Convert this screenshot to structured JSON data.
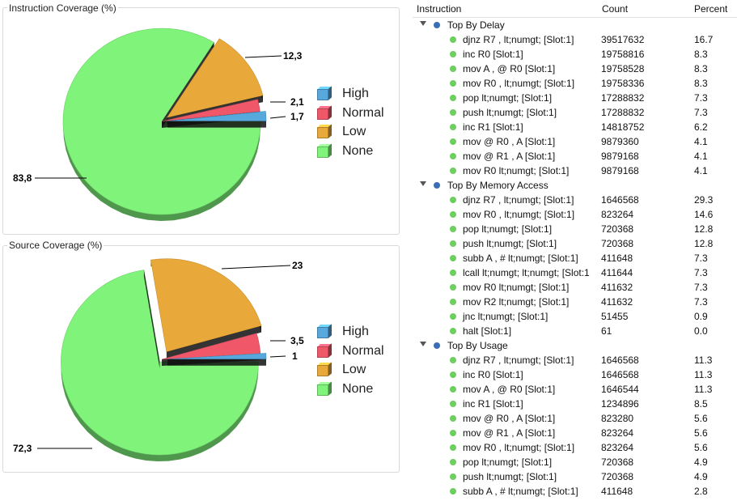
{
  "colors": {
    "high": "#56a8dd",
    "normal": "#f0586a",
    "low": "#e9a93a",
    "none": "#80f47a",
    "group_dot": "#3a6fb5",
    "item_dot": "#6ccf5f"
  },
  "charts": [
    {
      "title": "Instruction Coverage (%)",
      "legend": [
        {
          "label": "High",
          "key": "high"
        },
        {
          "label": "Normal",
          "key": "normal"
        },
        {
          "label": "Low",
          "key": "low"
        },
        {
          "label": "None",
          "key": "none"
        }
      ],
      "slice_labels": [
        "1,7",
        "2,1",
        "12,3",
        "83,8"
      ]
    },
    {
      "title": "Source Coverage (%)",
      "legend": [
        {
          "label": "High",
          "key": "high"
        },
        {
          "label": "Normal",
          "key": "normal"
        },
        {
          "label": "Low",
          "key": "low"
        },
        {
          "label": "None",
          "key": "none"
        }
      ],
      "slice_labels": [
        "1",
        "3,5",
        "23",
        "72,3"
      ]
    }
  ],
  "chart_data": [
    {
      "type": "pie",
      "title": "Instruction Coverage (%)",
      "categories": [
        "High",
        "Normal",
        "Low",
        "None"
      ],
      "values": [
        1.7,
        2.1,
        12.3,
        83.8
      ],
      "exploded": [
        "High",
        "Low"
      ]
    },
    {
      "type": "pie",
      "title": "Source Coverage (%)",
      "categories": [
        "High",
        "Normal",
        "Low",
        "None"
      ],
      "values": [
        1,
        3.5,
        23,
        72.3
      ],
      "exploded": [
        "High",
        "Low",
        "None"
      ]
    }
  ],
  "table": {
    "headers": {
      "instruction": "Instruction",
      "count": "Count",
      "percent": "Percent"
    },
    "groups": [
      {
        "name": "Top By Delay",
        "rows": [
          {
            "instruction": "djnz R7 , lt;numgt;  [Slot:1]",
            "count": "39517632",
            "percent": "16.7"
          },
          {
            "instruction": "inc R0  [Slot:1]",
            "count": "19758816",
            "percent": "8.3"
          },
          {
            "instruction": "mov A , @ R0  [Slot:1]",
            "count": "19758528",
            "percent": "8.3"
          },
          {
            "instruction": "mov R0 , lt;numgt;  [Slot:1]",
            "count": "19758336",
            "percent": "8.3"
          },
          {
            "instruction": "pop lt;numgt;  [Slot:1]",
            "count": "17288832",
            "percent": "7.3"
          },
          {
            "instruction": "push lt;numgt;  [Slot:1]",
            "count": "17288832",
            "percent": "7.3"
          },
          {
            "instruction": "inc R1  [Slot:1]",
            "count": "14818752",
            "percent": "6.2"
          },
          {
            "instruction": "mov @ R0 , A  [Slot:1]",
            "count": "9879360",
            "percent": "4.1"
          },
          {
            "instruction": "mov @ R1 , A  [Slot:1]",
            "count": "9879168",
            "percent": "4.1"
          },
          {
            "instruction": "mov R0 lt;numgt;  [Slot:1]",
            "count": "9879168",
            "percent": "4.1"
          }
        ]
      },
      {
        "name": "Top By Memory Access",
        "rows": [
          {
            "instruction": "djnz R7 , lt;numgt;  [Slot:1]",
            "count": "1646568",
            "percent": "29.3"
          },
          {
            "instruction": "mov R0 , lt;numgt;  [Slot:1]",
            "count": "823264",
            "percent": "14.6"
          },
          {
            "instruction": "pop lt;numgt;  [Slot:1]",
            "count": "720368",
            "percent": "12.8"
          },
          {
            "instruction": "push lt;numgt;  [Slot:1]",
            "count": "720368",
            "percent": "12.8"
          },
          {
            "instruction": "subb A , # lt;numgt;  [Slot:1]",
            "count": "411648",
            "percent": "7.3"
          },
          {
            "instruction": "lcall lt;numgt; lt;numgt;  [Slot:1",
            "count": "411644",
            "percent": "7.3"
          },
          {
            "instruction": "mov R0 lt;numgt;  [Slot:1]",
            "count": "411632",
            "percent": "7.3"
          },
          {
            "instruction": "mov R2 lt;numgt;  [Slot:1]",
            "count": "411632",
            "percent": "7.3"
          },
          {
            "instruction": "jnc lt;numgt;  [Slot:1]",
            "count": "51455",
            "percent": "0.9"
          },
          {
            "instruction": "halt  [Slot:1]",
            "count": "61",
            "percent": "0.0"
          }
        ]
      },
      {
        "name": "Top By Usage",
        "rows": [
          {
            "instruction": "djnz R7 , lt;numgt;  [Slot:1]",
            "count": "1646568",
            "percent": "11.3"
          },
          {
            "instruction": "inc R0  [Slot:1]",
            "count": "1646568",
            "percent": "11.3"
          },
          {
            "instruction": "mov A , @ R0  [Slot:1]",
            "count": "1646544",
            "percent": "11.3"
          },
          {
            "instruction": "inc R1  [Slot:1]",
            "count": "1234896",
            "percent": "8.5"
          },
          {
            "instruction": "mov @ R0 , A  [Slot:1]",
            "count": "823280",
            "percent": "5.6"
          },
          {
            "instruction": "mov @ R1 , A  [Slot:1]",
            "count": "823264",
            "percent": "5.6"
          },
          {
            "instruction": "mov R0 , lt;numgt;  [Slot:1]",
            "count": "823264",
            "percent": "5.6"
          },
          {
            "instruction": "pop lt;numgt;  [Slot:1]",
            "count": "720368",
            "percent": "4.9"
          },
          {
            "instruction": "push lt;numgt;  [Slot:1]",
            "count": "720368",
            "percent": "4.9"
          },
          {
            "instruction": "subb A , # lt;numgt;  [Slot:1]",
            "count": "411648",
            "percent": "2.8"
          }
        ]
      }
    ]
  }
}
